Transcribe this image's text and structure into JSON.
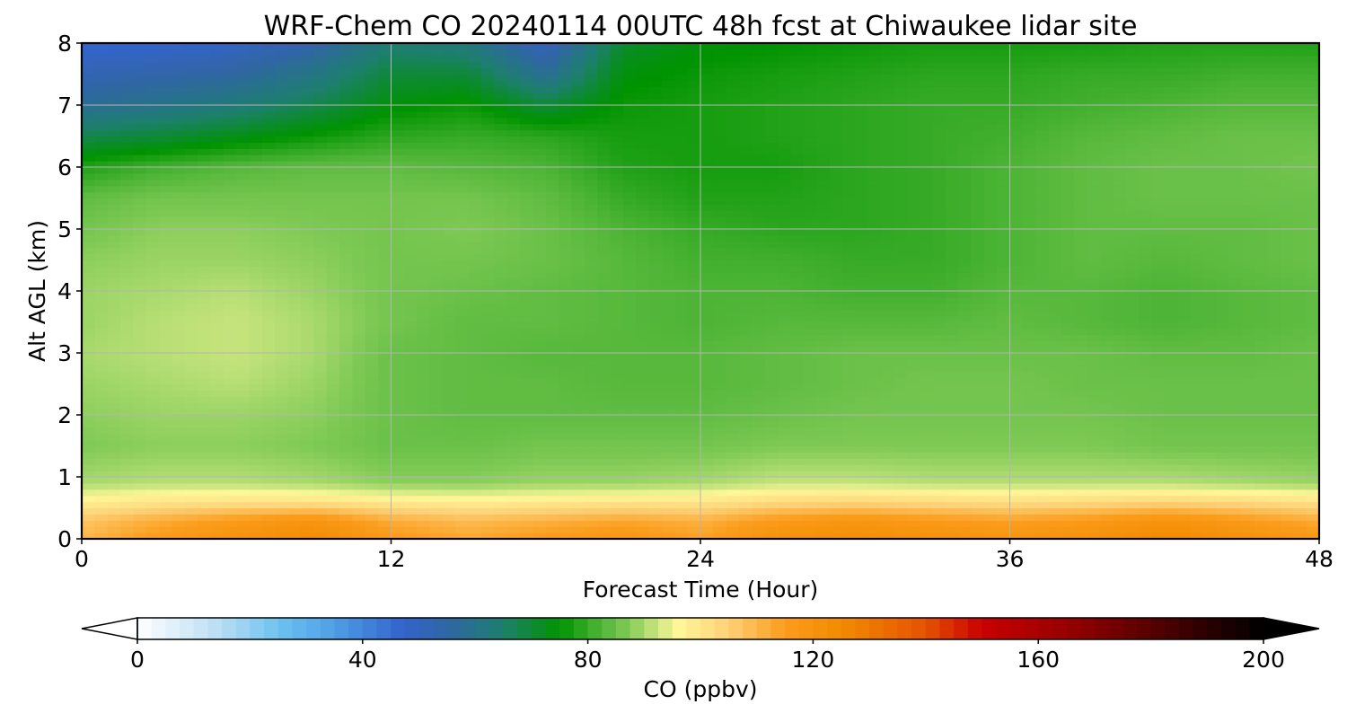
{
  "chart_data": {
    "type": "heatmap",
    "title": "WRF-Chem CO  20240114 00UTC 48h fcst at Chiwaukee lidar site",
    "xlabel": "Forecast Time (Hour)",
    "ylabel": "Alt AGL (km)",
    "xlim": [
      0,
      48
    ],
    "ylim": [
      0,
      8
    ],
    "xticks": [
      "0",
      "12",
      "24",
      "36",
      "48"
    ],
    "yticks": [
      "0",
      "1",
      "2",
      "3",
      "4",
      "5",
      "6",
      "7",
      "8"
    ],
    "grid": true,
    "x": [
      0,
      3,
      6,
      9,
      12,
      15,
      18,
      21,
      24,
      27,
      30,
      33,
      36,
      39,
      42,
      45,
      48
    ],
    "y": [
      0,
      0.3,
      0.6,
      0.9,
      1.5,
      2,
      2.5,
      3,
      3.5,
      4,
      4.5,
      5,
      5.5,
      6,
      6.5,
      7,
      7.5,
      8
    ],
    "z": [
      [
        110,
        116,
        120,
        124,
        116,
        113,
        116,
        118,
        114,
        121,
        123,
        121,
        119,
        121,
        125,
        121,
        117
      ],
      [
        107,
        112,
        116,
        119,
        112,
        109,
        111,
        113,
        111,
        116,
        118,
        116,
        114,
        116,
        120,
        116,
        112
      ],
      [
        98,
        100,
        101,
        101,
        99,
        98,
        99,
        100,
        100,
        103,
        104,
        103,
        102,
        103,
        104,
        103,
        101
      ],
      [
        90,
        91,
        91,
        90,
        88,
        88,
        89,
        89,
        90,
        92,
        92,
        91,
        91,
        91,
        91,
        90,
        89
      ],
      [
        87,
        88,
        88,
        87,
        85,
        85,
        86,
        86,
        86,
        87,
        87,
        87,
        87,
        87,
        86,
        86,
        86
      ],
      [
        88,
        89,
        89,
        88,
        85,
        84,
        84,
        84,
        84,
        85,
        86,
        86,
        86,
        86,
        85,
        85,
        85
      ],
      [
        89,
        90,
        91,
        89,
        85,
        84,
        84,
        83,
        83,
        84,
        85,
        86,
        86,
        85,
        85,
        85,
        85
      ],
      [
        90,
        91,
        92,
        90,
        85,
        84,
        83,
        83,
        83,
        84,
        85,
        85,
        85,
        85,
        84,
        84,
        85
      ],
      [
        89,
        91,
        92,
        90,
        86,
        84,
        84,
        83,
        82,
        83,
        83,
        83,
        84,
        83,
        82,
        83,
        84
      ],
      [
        89,
        90,
        91,
        89,
        86,
        85,
        84,
        83,
        82,
        82,
        81,
        81,
        83,
        83,
        82,
        83,
        84
      ],
      [
        88,
        89,
        89,
        88,
        86,
        86,
        85,
        83,
        81,
        81,
        80,
        80,
        82,
        84,
        83,
        84,
        85
      ],
      [
        86,
        88,
        88,
        87,
        86,
        87,
        85,
        82,
        80,
        79,
        79,
        80,
        82,
        84,
        84,
        84,
        85
      ],
      [
        84,
        86,
        86,
        86,
        86,
        86,
        84,
        80,
        78,
        78,
        79,
        80,
        82,
        84,
        85,
        85,
        85
      ],
      [
        78,
        81,
        83,
        84,
        84,
        83,
        82,
        78,
        77,
        77,
        79,
        80,
        82,
        84,
        85,
        85,
        86
      ],
      [
        68,
        70,
        73,
        76,
        79,
        80,
        79,
        77,
        77,
        78,
        79,
        80,
        81,
        83,
        84,
        85,
        85
      ],
      [
        58,
        60,
        63,
        68,
        74,
        76,
        70,
        76,
        77,
        78,
        79,
        80,
        80,
        81,
        82,
        83,
        83
      ],
      [
        52,
        54,
        56,
        61,
        70,
        70,
        58,
        74,
        76,
        77,
        78,
        79,
        79,
        80,
        80,
        81,
        81
      ],
      [
        46,
        47,
        49,
        54,
        64,
        62,
        50,
        71,
        74,
        75,
        76,
        77,
        77,
        77,
        78,
        78,
        78
      ]
    ],
    "colorbar": {
      "label": "CO  (ppbv)",
      "ticks": [
        "0",
        "40",
        "80",
        "120",
        "160",
        "200"
      ],
      "range": [
        0,
        200
      ],
      "extend": "both",
      "placement": "bottom",
      "stops": [
        {
          "v": 0,
          "c": "#ffffff"
        },
        {
          "v": 15,
          "c": "#b7dcf3"
        },
        {
          "v": 25,
          "c": "#6ec3f0"
        },
        {
          "v": 35,
          "c": "#4f9ee6"
        },
        {
          "v": 47,
          "c": "#3364cc"
        },
        {
          "v": 55,
          "c": "#3066a4"
        },
        {
          "v": 65,
          "c": "#1d7f6d"
        },
        {
          "v": 75,
          "c": "#009300"
        },
        {
          "v": 82,
          "c": "#4db436"
        },
        {
          "v": 87,
          "c": "#7ec955"
        },
        {
          "v": 91,
          "c": "#b8df75"
        },
        {
          "v": 96,
          "c": "#fff799"
        },
        {
          "v": 105,
          "c": "#fed177"
        },
        {
          "v": 115,
          "c": "#fb9c1b"
        },
        {
          "v": 125,
          "c": "#f28b00"
        },
        {
          "v": 140,
          "c": "#e45200"
        },
        {
          "v": 150,
          "c": "#c80000"
        },
        {
          "v": 165,
          "c": "#990000"
        },
        {
          "v": 185,
          "c": "#400000"
        },
        {
          "v": 200,
          "c": "#000000"
        }
      ]
    }
  }
}
